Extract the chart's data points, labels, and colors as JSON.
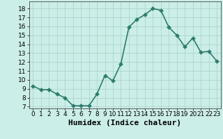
{
  "x": [
    0,
    1,
    2,
    3,
    4,
    5,
    6,
    7,
    8,
    9,
    10,
    11,
    12,
    13,
    14,
    15,
    16,
    17,
    18,
    19,
    20,
    21,
    22,
    23
  ],
  "y": [
    9.3,
    8.9,
    8.9,
    8.4,
    8.0,
    7.1,
    7.1,
    7.1,
    8.4,
    10.5,
    9.9,
    11.8,
    15.9,
    16.8,
    17.3,
    18.0,
    17.8,
    15.9,
    15.0,
    13.7,
    14.7,
    13.1,
    13.2,
    12.1
  ],
  "xlabel": "Humidex (Indice chaleur)",
  "ylim": [
    6.8,
    18.8
  ],
  "xlim": [
    -0.5,
    23.5
  ],
  "yticks": [
    7,
    8,
    9,
    10,
    11,
    12,
    13,
    14,
    15,
    16,
    17,
    18
  ],
  "xtick_labels": [
    "0",
    "1",
    "2",
    "3",
    "4",
    "5",
    "6",
    "7",
    "8",
    "9",
    "10",
    "11",
    "12",
    "13",
    "14",
    "15",
    "16",
    "17",
    "18",
    "19",
    "20",
    "21",
    "22",
    "23"
  ],
  "line_color": "#2e7d6e",
  "marker_color": "#2e7d6e",
  "bg_color": "#cceee8",
  "grid_color": "#b0d8d0",
  "xlabel_fontsize": 8,
  "tick_fontsize": 6.5,
  "line_width": 1.2,
  "marker_size": 3
}
